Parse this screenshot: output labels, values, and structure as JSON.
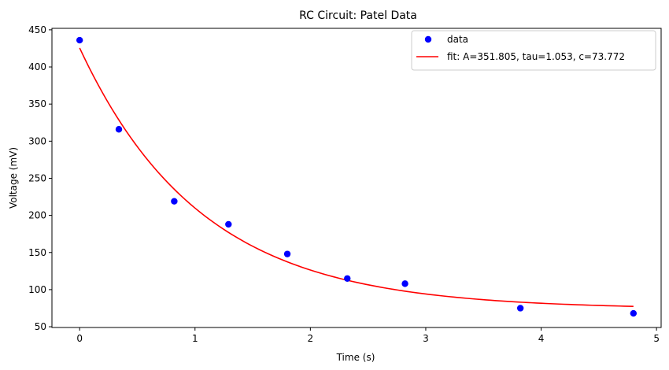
{
  "chart_data": {
    "type": "scatter",
    "title": "RC Circuit: Patel Data",
    "xlabel": "Time (s)",
    "ylabel": "Voltage (mV)",
    "xlim": [
      -0.24,
      5.04
    ],
    "ylim": [
      49,
      452
    ],
    "xticks": [
      0,
      1,
      2,
      3,
      4,
      5
    ],
    "yticks": [
      50,
      100,
      150,
      200,
      250,
      300,
      350,
      400,
      450
    ],
    "grid": false,
    "legend_position": "top-right",
    "series": [
      {
        "name": "data",
        "kind": "points",
        "color": "#0000ff",
        "x": [
          0.0,
          0.34,
          0.82,
          1.29,
          1.8,
          2.32,
          2.82,
          3.82,
          4.8
        ],
        "y": [
          436,
          316,
          219,
          188,
          148,
          115,
          108,
          75,
          68
        ]
      },
      {
        "name": "fit: A=351.805, tau=1.053, c=73.772",
        "kind": "fit-line",
        "color": "#ff0000",
        "model": "exponential-decay",
        "A": 351.805,
        "tau": 1.053,
        "c": 73.772,
        "x_range": [
          0,
          4.8
        ]
      }
    ]
  }
}
